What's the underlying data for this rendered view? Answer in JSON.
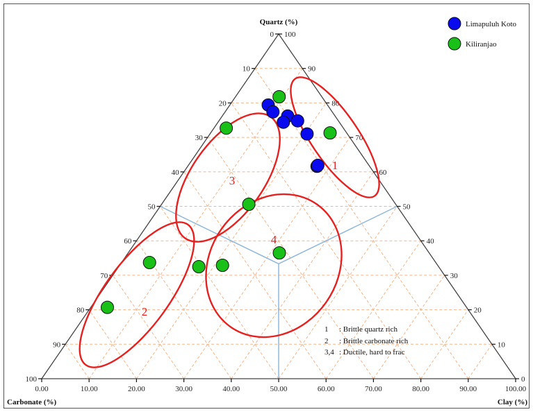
{
  "chart_data": {
    "type": "scatter",
    "subtype": "ternary",
    "axes": {
      "top": {
        "title": "Quartz (%)",
        "ticks": [
          "0",
          "10",
          "20",
          "30",
          "40",
          "50",
          "60",
          "70",
          "80",
          "90",
          "100"
        ],
        "ticks_right": [
          "100",
          "90",
          "80",
          "70",
          "60",
          "50",
          "40",
          "30",
          "20",
          "10",
          "0"
        ]
      },
      "bottom": {
        "ticks": [
          "0.00",
          "10.00",
          "20.00",
          "30.00",
          "40.00",
          "50.00",
          "60.00",
          "70.00",
          "80.00",
          "90.00",
          "100.00"
        ]
      },
      "left_title": "Carbonate (%)",
      "right_title": "Clay (%)"
    },
    "grid": true,
    "legend_position": "top-right",
    "series": [
      {
        "name": "Limapuluh Koto",
        "color": "#0a0aee",
        "points": [
          {
            "quartz": 79.4,
            "clay": 8.1
          },
          {
            "quartz": 77.4,
            "clay": 10.1
          },
          {
            "quartz": 76.2,
            "clay": 13.8
          },
          {
            "quartz": 74.4,
            "clay": 13.8
          },
          {
            "quartz": 74.8,
            "clay": 16.6
          },
          {
            "quartz": 71.0,
            "clay": 20.5
          },
          {
            "quartz": 61.6,
            "clay": 27.3
          },
          {
            "quartz": 61.9,
            "clay": 27.3
          }
        ]
      },
      {
        "name": "Kiliranjao",
        "color": "#18c018",
        "points": [
          {
            "quartz": 81.8,
            "clay": 9.2
          },
          {
            "quartz": 71.3,
            "clay": 25.2
          },
          {
            "quartz": 72.7,
            "clay": 2.6
          },
          {
            "quartz": 50.6,
            "clay": 18.4
          },
          {
            "quartz": 36.5,
            "clay": 31.9
          },
          {
            "quartz": 32.9,
            "clay": 21.7
          },
          {
            "quartz": 32.5,
            "clay": 16.9
          },
          {
            "quartz": 33.7,
            "clay": 5.9
          },
          {
            "quartz": 20.7,
            "clay": 3.5
          }
        ]
      }
    ],
    "zones": [
      "1",
      "2",
      "3",
      "4"
    ],
    "notes": [
      {
        "key": "1",
        "text": ": Brittle quartz rich"
      },
      {
        "key": "2",
        "text": ": Brittle carbonate rich"
      },
      {
        "key": "3,4",
        "text": ": Ductile, hard to frac"
      }
    ]
  }
}
